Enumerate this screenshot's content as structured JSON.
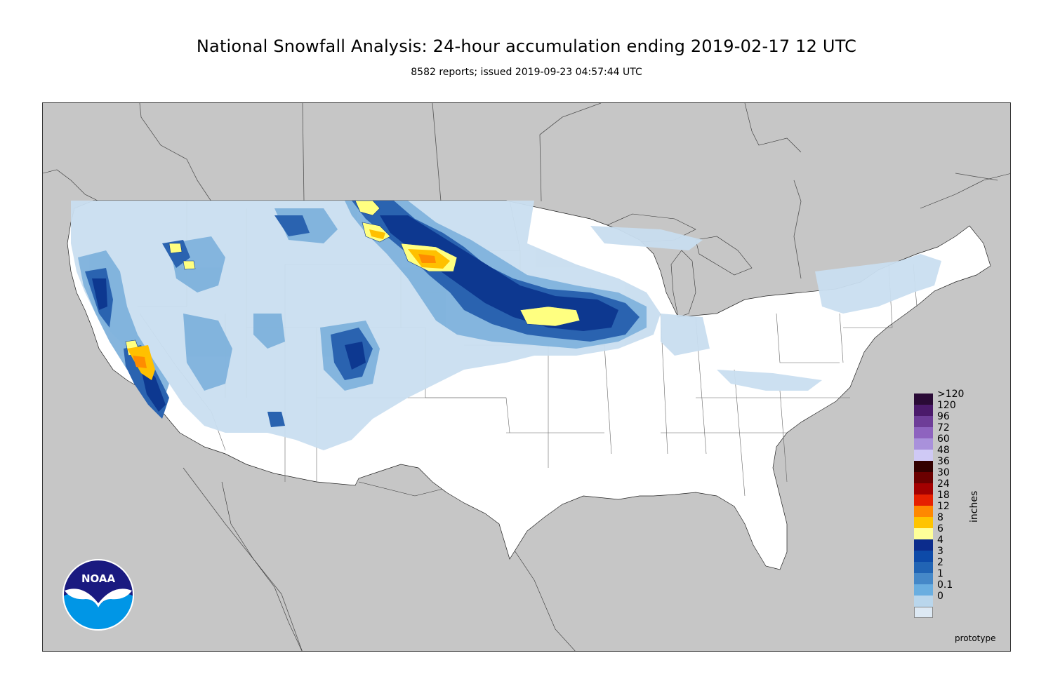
{
  "header": {
    "title": "National Snowfall Analysis: 24-hour accumulation ending 2019-02-17 12 UTC",
    "subtitle": "8582 reports; issued 2019-09-23 04:57:44 UTC"
  },
  "legend": {
    "units": "inches",
    "levels": [
      {
        "label": ">120",
        "color": "#2a0a36"
      },
      {
        "label": "120",
        "color": "#4b1a6b"
      },
      {
        "label": "96",
        "color": "#6e3d98"
      },
      {
        "label": "72",
        "color": "#8e63bf"
      },
      {
        "label": "60",
        "color": "#a991db"
      },
      {
        "label": "48",
        "color": "#cfc9f5"
      },
      {
        "label": "36",
        "color": "#330000"
      },
      {
        "label": "30",
        "color": "#6b0000"
      },
      {
        "label": "24",
        "color": "#a30000"
      },
      {
        "label": "18",
        "color": "#e62000"
      },
      {
        "label": "12",
        "color": "#ff8800"
      },
      {
        "label": "8",
        "color": "#ffc400"
      },
      {
        "label": "6",
        "color": "#ffff99"
      },
      {
        "label": "4",
        "color": "#0c2c8c"
      },
      {
        "label": "3",
        "color": "#0d4aa8"
      },
      {
        "label": "2",
        "color": "#2164b4"
      },
      {
        "label": "1",
        "color": "#4588c8"
      },
      {
        "label": "0.1",
        "color": "#6aaee0"
      },
      {
        "label": "0",
        "color": "#b9d6ec"
      },
      {
        "label": "",
        "color": "#dde9f4"
      },
      {
        "label": "",
        "color": "#ffffff"
      }
    ]
  },
  "footer": {
    "note": "prototype",
    "logo_text": "NOAA"
  },
  "colors": {
    "ocean_land_outside": "#c6c6c6",
    "us_land": "#ffffff",
    "light_snow": "#c9def0",
    "moderate_snow": "#7fb2dc",
    "heavy_snow": "#2a63b0",
    "very_heavy_snow": "#0d3890",
    "yellow": "#ffff80",
    "orange": "#ffc000",
    "deep_orange": "#ff8c00"
  }
}
